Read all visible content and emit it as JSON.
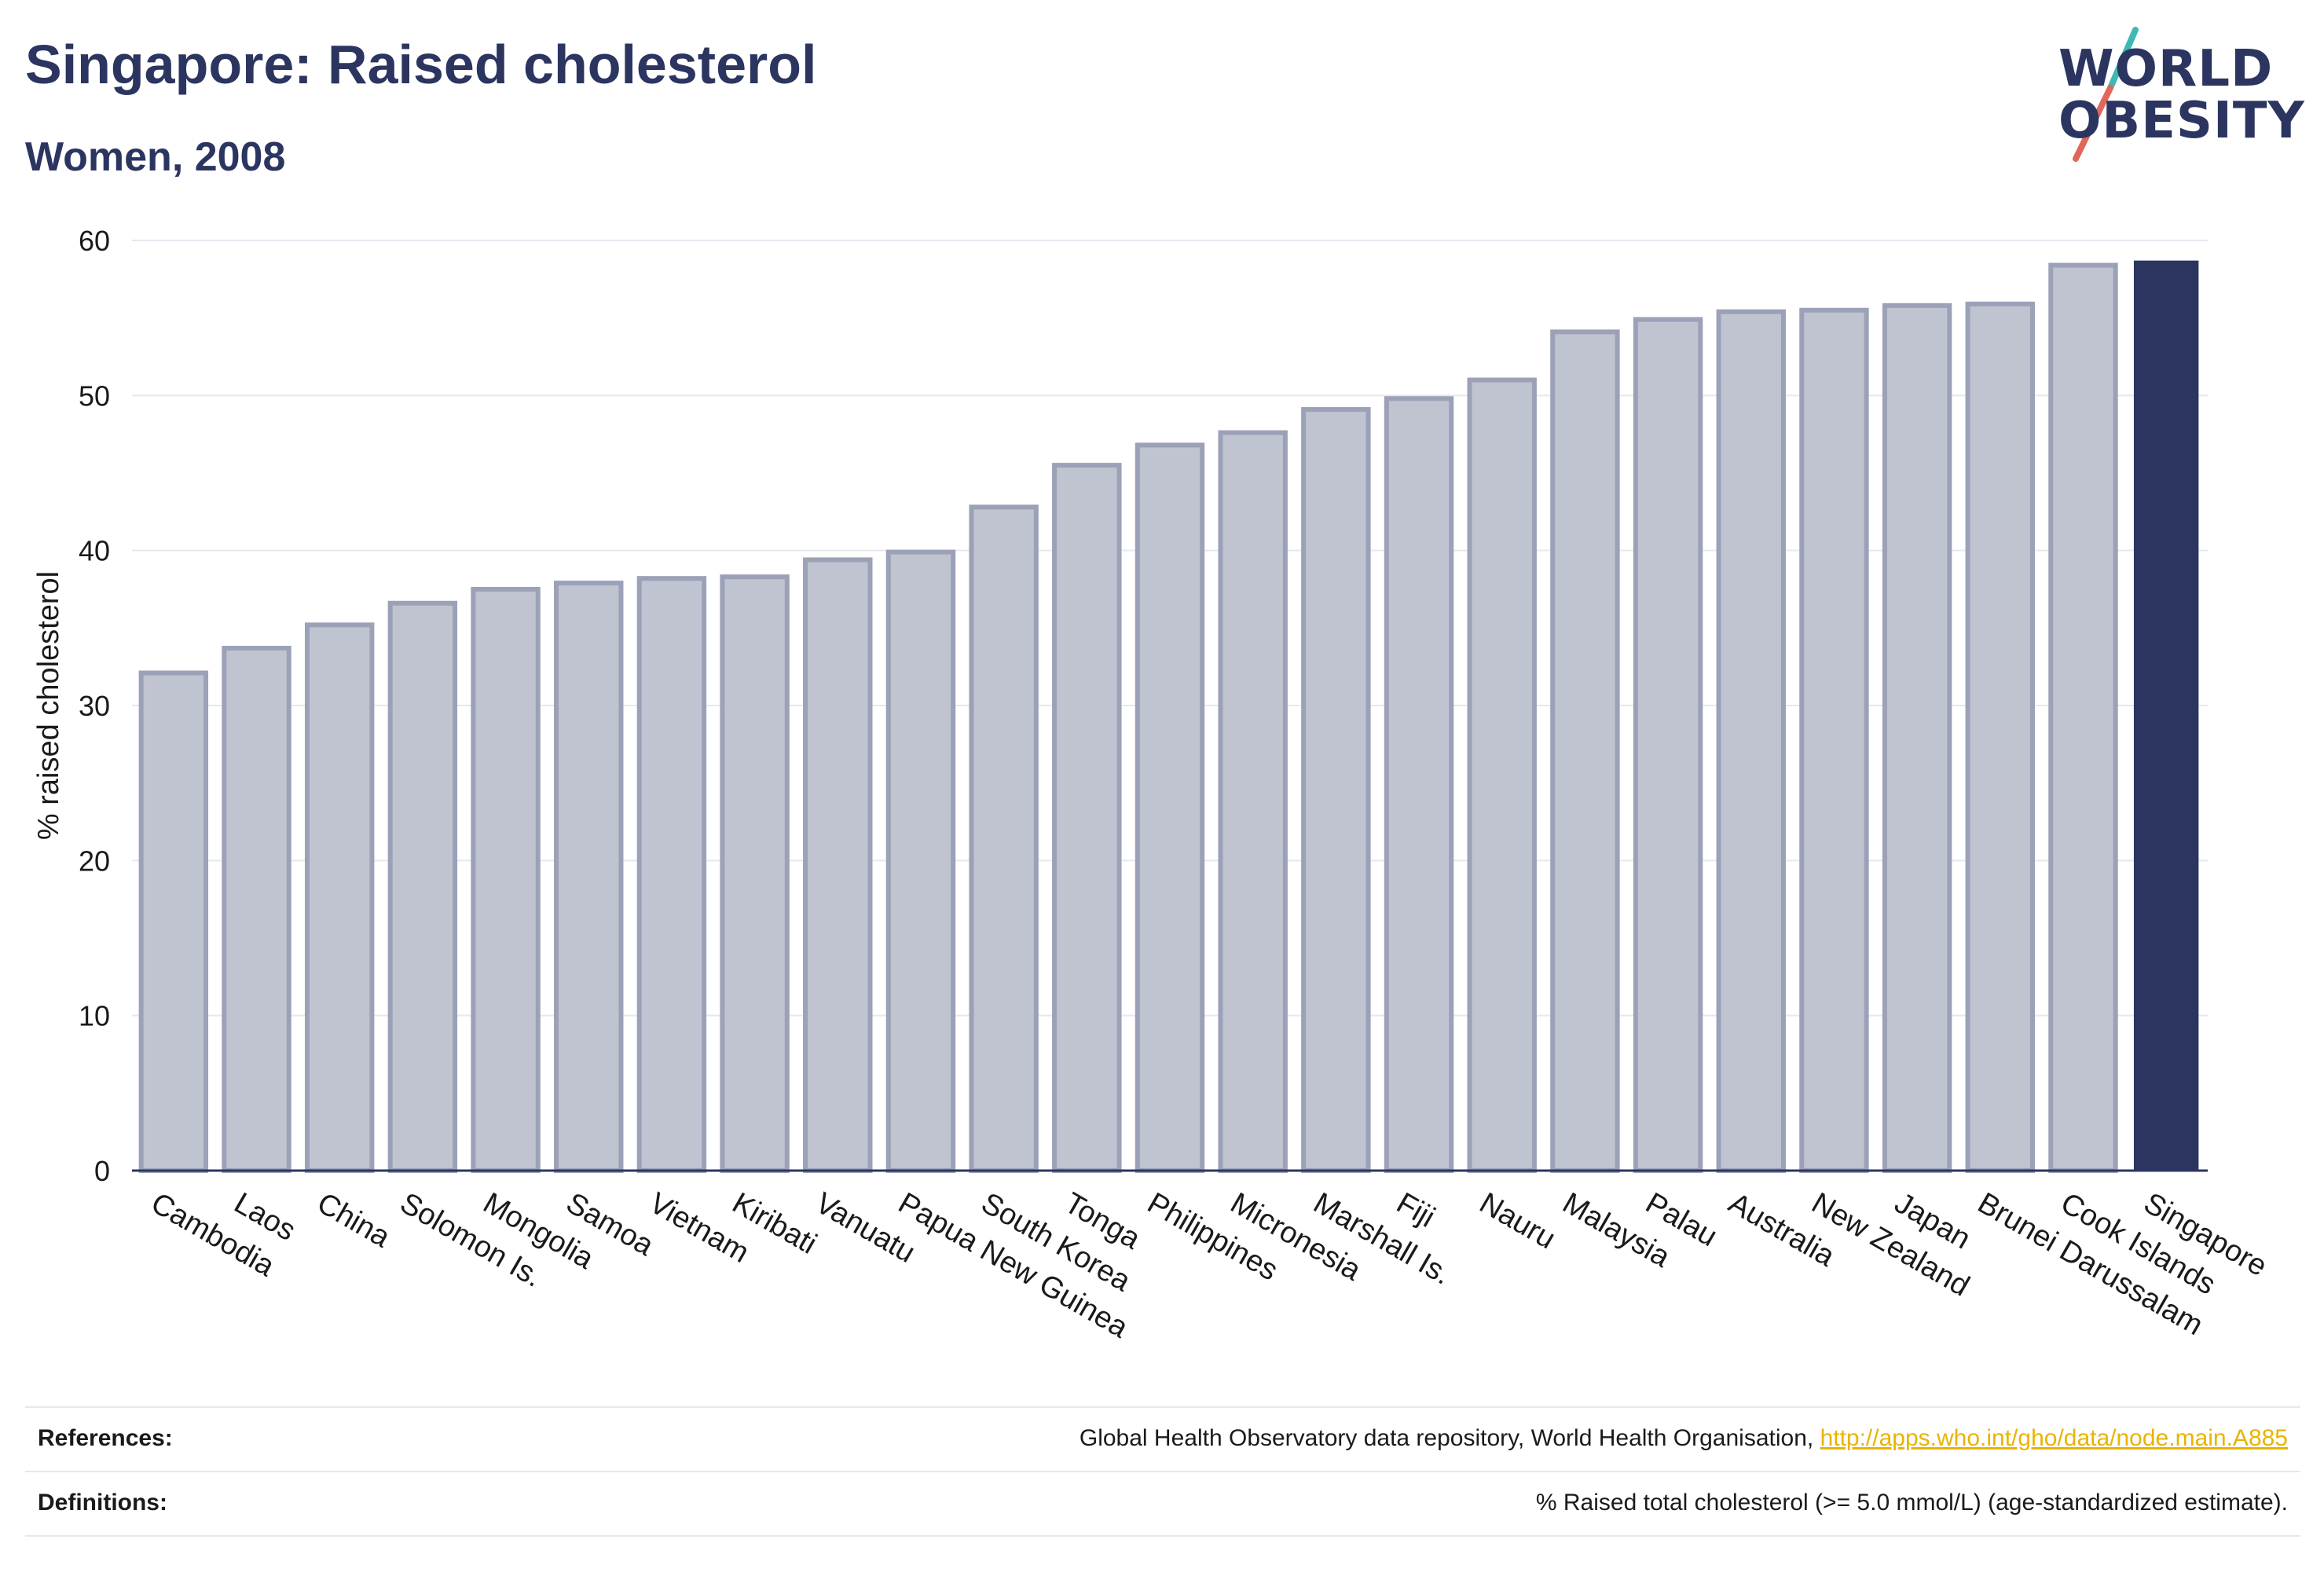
{
  "header": {
    "title": "Singapore: Raised cholesterol",
    "subtitle": "Women, 2008"
  },
  "logo": {
    "line1": "WORLD",
    "line2": "OBESITY",
    "text_color": "#2b3560",
    "slash_colors": [
      "#3fb8b4",
      "#e0675a"
    ]
  },
  "chart_data": {
    "type": "bar",
    "title": "Singapore: Raised cholesterol",
    "subtitle": "Women, 2008",
    "xlabel": "",
    "ylabel": "% raised cholesterol",
    "ylim": [
      0,
      60
    ],
    "yticks": [
      0,
      10,
      20,
      30,
      40,
      50,
      60
    ],
    "grid": true,
    "highlight": "Singapore",
    "colors": {
      "bar_fill": "#c0c3d0",
      "bar_stroke": "#9ba1b7",
      "highlight_fill": "#2b3560",
      "axis": "#2b3560",
      "grid": "#e6e8ef"
    },
    "categories": [
      "Cambodia",
      "Laos",
      "China",
      "Solomon Is.",
      "Mongolia",
      "Samoa",
      "Vietnam",
      "Kiribati",
      "Vanuatu",
      "Papua New Guinea",
      "South Korea",
      "Tonga",
      "Philippines",
      "Micronesia",
      "Marshall Is.",
      "Fiji",
      "Nauru",
      "Malaysia",
      "Palau",
      "Australia",
      "New Zealand",
      "Japan",
      "Brunei Darussalam",
      "Cook Islands",
      "Singapore"
    ],
    "values": [
      32.1,
      33.7,
      35.2,
      36.6,
      37.5,
      37.9,
      38.2,
      38.3,
      39.4,
      39.9,
      42.8,
      45.5,
      46.8,
      47.6,
      49.1,
      49.8,
      51.0,
      54.1,
      54.9,
      55.4,
      55.5,
      55.8,
      55.9,
      58.4,
      58.7
    ]
  },
  "footer": {
    "references_label": "References:",
    "references_text": "Global Health Observatory data repository, World Health Organisation,",
    "references_link": "http://apps.who.int/gho/data/node.main.A885",
    "definitions_label": "Definitions:",
    "definitions_text": "% Raised total cholesterol (>= 5.0 mmol/L) (age-standardized estimate)."
  }
}
